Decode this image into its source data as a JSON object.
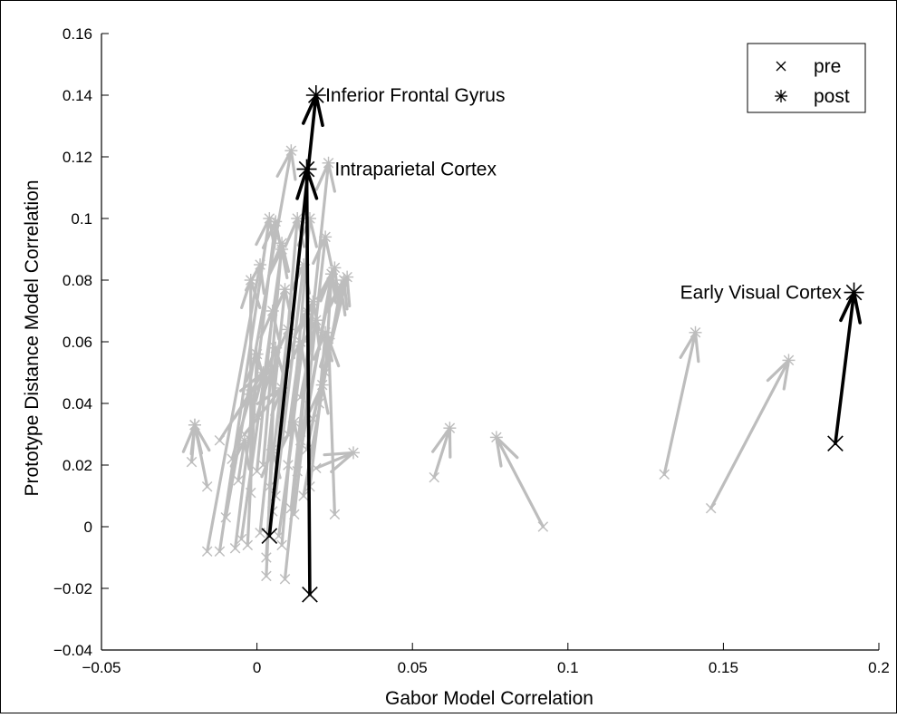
{
  "chart_data": {
    "type": "scatter",
    "title": "",
    "xlabel": "Gabor Model Correlation",
    "ylabel": "Prototype Distance Model Correlation",
    "xlim": [
      -0.05,
      0.2
    ],
    "ylim": [
      -0.04,
      0.16
    ],
    "x_ticks": [
      {
        "value": -0.05,
        "label": "−0.05"
      },
      {
        "value": 0,
        "label": "0"
      },
      {
        "value": 0.05,
        "label": "0.05"
      },
      {
        "value": 0.1,
        "label": "0.1"
      },
      {
        "value": 0.15,
        "label": "0.15"
      },
      {
        "value": 0.2,
        "label": "0.2"
      }
    ],
    "y_ticks": [
      {
        "value": -0.04,
        "label": "−0.04"
      },
      {
        "value": -0.02,
        "label": "−0.02"
      },
      {
        "value": 0,
        "label": "0"
      },
      {
        "value": 0.02,
        "label": "0.02"
      },
      {
        "value": 0.04,
        "label": "0.04"
      },
      {
        "value": 0.06,
        "label": "0.06"
      },
      {
        "value": 0.08,
        "label": "0.08"
      },
      {
        "value": 0.1,
        "label": "0.1"
      },
      {
        "value": 0.12,
        "label": "0.12"
      },
      {
        "value": 0.14,
        "label": "0.14"
      },
      {
        "value": 0.16,
        "label": "0.16"
      }
    ],
    "grid": false,
    "legend": {
      "placement": "top-right",
      "entries": [
        {
          "label": "pre",
          "marker": "x"
        },
        {
          "label": "post",
          "marker": "asterisk"
        }
      ]
    },
    "colors": {
      "highlight": "#000000",
      "background_region": "#bdbdbd"
    },
    "highlighted_regions": [
      {
        "name": "Inferior Frontal Gyrus",
        "pre": [
          0.004,
          -0.003
        ],
        "post": [
          0.019,
          0.14
        ]
      },
      {
        "name": "Intraparietal Cortex",
        "pre": [
          0.017,
          -0.022
        ],
        "post": [
          0.016,
          0.116
        ]
      },
      {
        "name": "Early Visual Cortex",
        "pre": [
          0.186,
          0.027
        ],
        "post": [
          0.192,
          0.076
        ]
      }
    ],
    "other_regions": [
      {
        "pre": [
          0.057,
          0.016
        ],
        "post": [
          0.062,
          0.032
        ]
      },
      {
        "pre": [
          0.092,
          0.0
        ],
        "post": [
          0.077,
          0.029
        ]
      },
      {
        "pre": [
          0.131,
          0.017
        ],
        "post": [
          0.141,
          0.063
        ]
      },
      {
        "pre": [
          0.146,
          0.006
        ],
        "post": [
          0.171,
          0.054
        ]
      },
      {
        "pre": [
          0.019,
          0.019
        ],
        "post": [
          0.031,
          0.024
        ]
      },
      {
        "pre": [
          -0.021,
          0.021
        ],
        "post": [
          -0.02,
          0.033
        ]
      },
      {
        "pre": [
          -0.016,
          0.013
        ],
        "post": [
          -0.02,
          0.033
        ]
      },
      {
        "pre": [
          -0.016,
          -0.008
        ],
        "post": [
          0.001,
          0.085
        ]
      },
      {
        "pre": [
          -0.012,
          -0.008
        ],
        "post": [
          0.004,
          0.1
        ]
      },
      {
        "pre": [
          -0.01,
          0.003
        ],
        "post": [
          0.011,
          0.122
        ]
      },
      {
        "pre": [
          -0.007,
          -0.007
        ],
        "post": [
          0.006,
          0.099
        ]
      },
      {
        "pre": [
          -0.005,
          -0.004
        ],
        "post": [
          0.008,
          0.09
        ]
      },
      {
        "pre": [
          -0.003,
          -0.006
        ],
        "post": [
          0.0,
          0.056
        ]
      },
      {
        "pre": [
          -0.002,
          0.011
        ],
        "post": [
          -0.002,
          0.08
        ]
      },
      {
        "pre": [
          0.0,
          0.018
        ],
        "post": [
          0.005,
          0.07
        ]
      },
      {
        "pre": [
          0.001,
          -0.002
        ],
        "post": [
          0.009,
          0.077
        ]
      },
      {
        "pre": [
          0.002,
          0.02
        ],
        "post": [
          0.008,
          0.092
        ]
      },
      {
        "pre": [
          0.003,
          -0.016
        ],
        "post": [
          0.006,
          0.058
        ]
      },
      {
        "pre": [
          0.005,
          0.005
        ],
        "post": [
          0.013,
          0.1
        ]
      },
      {
        "pre": [
          0.006,
          0.01
        ],
        "post": [
          0.015,
          0.085
        ]
      },
      {
        "pre": [
          0.008,
          -0.006
        ],
        "post": [
          0.017,
          0.1
        ]
      },
      {
        "pre": [
          0.009,
          -0.017
        ],
        "post": [
          0.023,
          0.118
        ]
      },
      {
        "pre": [
          0.01,
          0.02
        ],
        "post": [
          0.016,
          0.07
        ]
      },
      {
        "pre": [
          0.012,
          0.004
        ],
        "post": [
          0.022,
          0.094
        ]
      },
      {
        "pre": [
          0.013,
          0.018
        ],
        "post": [
          0.024,
          0.082
        ]
      },
      {
        "pre": [
          0.014,
          0.028
        ],
        "post": [
          0.025,
          0.084
        ]
      },
      {
        "pre": [
          0.015,
          0.01
        ],
        "post": [
          0.027,
          0.078
        ]
      },
      {
        "pre": [
          0.016,
          0.025
        ],
        "post": [
          0.028,
          0.08
        ]
      },
      {
        "pre": [
          0.018,
          0.035
        ],
        "post": [
          0.029,
          0.081
        ]
      },
      {
        "pre": [
          0.02,
          0.04
        ],
        "post": [
          0.022,
          0.063
        ]
      },
      {
        "pre": [
          0.025,
          0.004
        ],
        "post": [
          0.023,
          0.061
        ]
      },
      {
        "pre": [
          0.022,
          0.05
        ],
        "post": [
          0.024,
          0.082
        ]
      },
      {
        "pre": [
          -0.008,
          0.022
        ],
        "post": [
          -0.002,
          0.043
        ]
      },
      {
        "pre": [
          -0.012,
          0.028
        ],
        "post": [
          0.002,
          0.05
        ]
      },
      {
        "pre": [
          -0.004,
          0.03
        ],
        "post": [
          0.008,
          0.045
        ]
      },
      {
        "pre": [
          0.0,
          0.036
        ],
        "post": [
          0.005,
          0.052
        ]
      },
      {
        "pre": [
          0.01,
          0.03
        ],
        "post": [
          0.014,
          0.06
        ]
      },
      {
        "pre": [
          0.004,
          0.013
        ],
        "post": [
          0.01,
          0.064
        ]
      },
      {
        "pre": [
          -0.006,
          0.015
        ],
        "post": [
          -0.004,
          0.028
        ]
      },
      {
        "pre": [
          0.007,
          -0.003
        ],
        "post": [
          0.012,
          0.034
        ]
      },
      {
        "pre": [
          0.003,
          -0.01
        ],
        "post": [
          0.005,
          0.025
        ]
      },
      {
        "pre": [
          0.011,
          0.006
        ],
        "post": [
          0.018,
          0.073
        ]
      },
      {
        "pre": [
          0.014,
          0.042
        ],
        "post": [
          0.019,
          0.067
        ]
      },
      {
        "pre": [
          0.017,
          0.013
        ],
        "post": [
          0.021,
          0.046
        ]
      }
    ],
    "annotations": [
      {
        "text": "Inferior Frontal Gyrus",
        "x": 0.022,
        "y": 0.14
      },
      {
        "text": "Intraparietal Cortex",
        "x": 0.025,
        "y": 0.116
      },
      {
        "text": "Early Visual Cortex",
        "x": 0.188,
        "y": 0.076
      }
    ]
  }
}
